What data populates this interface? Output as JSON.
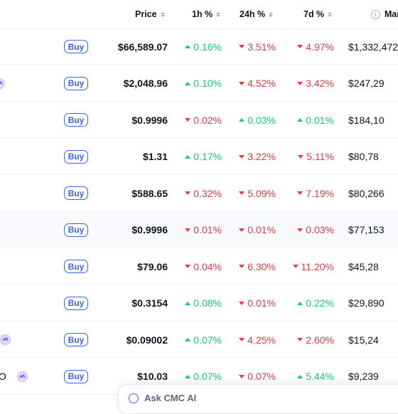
{
  "columns": {
    "price": "Price",
    "h1": "1h %",
    "h24": "24h %",
    "d7": "7d %",
    "mcap": "Mar"
  },
  "buy_label": "Buy",
  "colors": {
    "up": "#16c784",
    "down": "#ea3943",
    "accent": "#3861fb"
  },
  "rows": [
    {
      "name_fragment": "",
      "badge": false,
      "price": "$66,589.07",
      "h1": "0.16%",
      "h1_dir": "up",
      "h24": "3.51%",
      "h24_dir": "down",
      "d7": "4.97%",
      "d7_dir": "down",
      "mcap": "$1,332,472"
    },
    {
      "name_fragment": "",
      "badge": true,
      "price": "$2,048.96",
      "h1": "0.10%",
      "h1_dir": "up",
      "h24": "4.52%",
      "h24_dir": "down",
      "d7": "3.42%",
      "d7_dir": "down",
      "mcap": "$247,29"
    },
    {
      "name_fragment": "",
      "badge": false,
      "price": "$0.9996",
      "h1": "0.02%",
      "h1_dir": "down",
      "h24": "0.03%",
      "h24_dir": "up",
      "d7": "0.01%",
      "d7_dir": "up",
      "mcap": "$184,10"
    },
    {
      "name_fragment": "",
      "badge": false,
      "price": "$1.31",
      "h1": "0.17%",
      "h1_dir": "up",
      "h24": "3.22%",
      "h24_dir": "down",
      "d7": "5.11%",
      "d7_dir": "down",
      "mcap": "$80,78"
    },
    {
      "name_fragment": "",
      "badge": false,
      "price": "$588.65",
      "h1": "0.32%",
      "h1_dir": "down",
      "h24": "5.09%",
      "h24_dir": "down",
      "d7": "7.19%",
      "d7_dir": "down",
      "mcap": "$80,266"
    },
    {
      "name_fragment": "",
      "badge": false,
      "price": "$0.9996",
      "h1": "0.01%",
      "h1_dir": "down",
      "h24": "0.01%",
      "h24_dir": "down",
      "d7": "0.03%",
      "d7_dir": "down",
      "mcap": "$77,153"
    },
    {
      "name_fragment": "",
      "badge": false,
      "price": "$79.06",
      "h1": "0.04%",
      "h1_dir": "down",
      "h24": "6.30%",
      "h24_dir": "down",
      "d7": "11.20%",
      "d7_dir": "down",
      "mcap": "$45,28"
    },
    {
      "name_fragment": "",
      "badge": false,
      "price": "$0.3154",
      "h1": "0.08%",
      "h1_dir": "up",
      "h24": "0.01%",
      "h24_dir": "down",
      "d7": "0.22%",
      "d7_dir": "up",
      "mcap": "$29,890"
    },
    {
      "name_fragment": "",
      "badge": true,
      "price": "$0.09002",
      "h1": "0.07%",
      "h1_dir": "up",
      "h24": "4.25%",
      "h24_dir": "down",
      "d7": "2.60%",
      "d7_dir": "down",
      "mcap": "$15,24"
    },
    {
      "name_fragment": "O",
      "badge": true,
      "price": "$10.03",
      "h1": "0.07%",
      "h1_dir": "up",
      "h24": "0.07%",
      "h24_dir": "down",
      "d7": "5.44%",
      "d7_dir": "up",
      "mcap": "$9,239"
    }
  ],
  "ask_bar": {
    "label": "Ask CMC AI"
  }
}
